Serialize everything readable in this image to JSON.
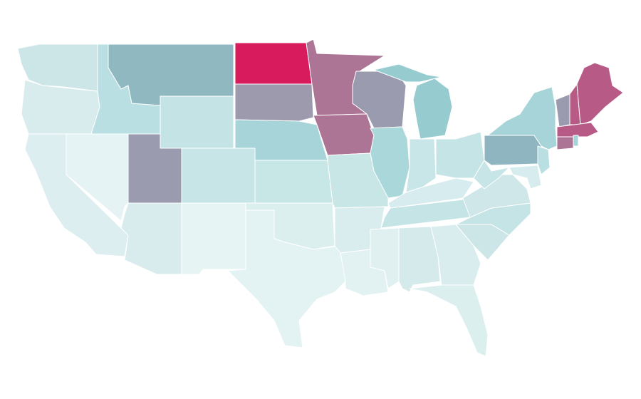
{
  "map": {
    "fills": [
      "#cce6e8",
      "#d9eced",
      "#dceeef",
      "#e5f3f4",
      "#b9dfe2",
      "#8fb8c1",
      "#c4e3e5",
      "#9b9bb0",
      "#c7e5e6",
      "#d8ecee",
      "#e6f4f4",
      "#d81b5d",
      "#9e9aae",
      "#a6d4d8",
      "#c7e6e6",
      "#dcefef",
      "#e3f2f3",
      "#ad7595",
      "#ad7595",
      "#c9e6e6",
      "#d9ecee",
      "#e2f1f2",
      "#9b9bb0",
      "#a9d7da",
      "#96ccd0",
      "#96ccd0",
      "#c8e6e7",
      "#c5e4e6",
      "#d6ecee",
      "#c5e4e6",
      "#e0f0f1",
      "#d4eaeb",
      "#d9edee",
      "#dcefef",
      "#cce6e8",
      "#c5e4e6",
      "#cfe7e8",
      "#c7e5e6",
      "#8fb6c0",
      "#a6d4d8",
      "#b9dfe2",
      "#d6ecee",
      "#9b9bb0",
      "#b85a86",
      "#b85a86",
      "#b85a86",
      "#ad7595",
      "#a6d4d8"
    ]
  }
}
